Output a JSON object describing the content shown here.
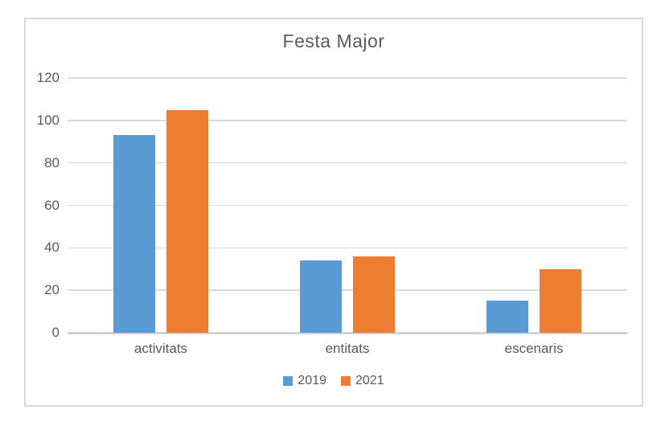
{
  "chart_data": {
    "type": "bar",
    "title": "Festa Major",
    "categories": [
      "activitats",
      "entitats",
      "escenaris"
    ],
    "series": [
      {
        "name": "2019",
        "color": "#5B9BD5",
        "values": [
          93,
          34,
          15
        ]
      },
      {
        "name": "2021",
        "color": "#ED7D31",
        "values": [
          105,
          36,
          30
        ]
      }
    ],
    "xlabel": "",
    "ylabel": "",
    "ylim": [
      0,
      120
    ],
    "yticks": [
      0,
      20,
      40,
      60,
      80,
      100,
      120
    ],
    "grid": "horizontal",
    "legend_position": "bottom",
    "colors": {
      "gridline": "#D9D9D9",
      "axis_line": "#D3D3D3",
      "text": "#595959",
      "frame_border": "#D9D9D9",
      "background": "#FFFFFF"
    }
  }
}
